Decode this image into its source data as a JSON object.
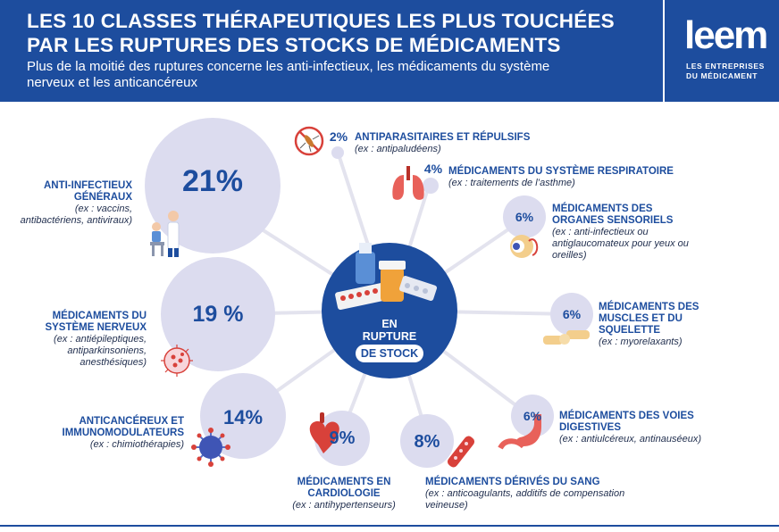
{
  "header": {
    "title_line1": "LES 10 CLASSES THÉRAPEUTIQUES LES PLUS TOUCHÉES",
    "title_line2": "PAR LES RUPTURES DES STOCKS DE MÉDICAMENTS",
    "subtitle": "Plus de la moitié des ruptures concerne les anti-infectieux, les médicaments du système nerveux et les anticancéreux"
  },
  "logo": {
    "wordmark": "leem",
    "tagline_line1": "LES ENTREPRISES",
    "tagline_line2": "DU MÉDICAMENT"
  },
  "center": {
    "line1": "EN",
    "line2": "RUPTURE",
    "line3": "DE STOCK"
  },
  "classes": [
    {
      "pct": "21%",
      "name": "ANTI-INFECTIEUX GÉNÉRAUX",
      "ex": "(ex : vaccins, antibactériens, antiviraux)"
    },
    {
      "pct": "19 %",
      "name": "MÉDICAMENTS DU SYSTÈME NERVEUX",
      "ex": "(ex : antiépileptiques, antiparkinsoniens, anesthésiques)"
    },
    {
      "pct": "14%",
      "name": "ANTICANCÉREUX ET IMMUNOMODULATEURS",
      "ex": "(ex : chimiothérapies)"
    },
    {
      "pct": "9%",
      "name": "MÉDICAMENTS EN CARDIOLOGIE",
      "ex": "(ex : antihypertenseurs)"
    },
    {
      "pct": "8%",
      "name": "MÉDICAMENTS DÉRIVÉS DU SANG",
      "ex": "(ex : anticoagulants, additifs de compensation veineuse)"
    },
    {
      "pct": "6%",
      "name": "MÉDICAMENTS DES VOIES DIGESTIVES",
      "ex": "(ex : antiulcéreux, antinauséeux)"
    },
    {
      "pct": "6%",
      "name": "MÉDICAMENTS DES MUSCLES ET DU SQUELETTE",
      "ex": "(ex : myorelaxants)"
    },
    {
      "pct": "6%",
      "name": "MÉDICAMENTS DES ORGANES SENSORIELS",
      "ex": "(ex : anti-infectieux ou antiglaucomateux pour yeux ou oreilles)"
    },
    {
      "pct": "4%",
      "name": "MÉDICAMENTS DU SYSTÈME RESPIRATOIRE",
      "ex": "(ex : traitements de l’asthme)"
    },
    {
      "pct": "2%",
      "name": "ANTIPARASITAIRES ET RÉPULSIFS",
      "ex": "(ex : antipaludéens)"
    }
  ],
  "colors": {
    "brand_blue": "#1d4d9e",
    "bubble_lavender": "#dcdcef",
    "spoke_gray": "#e3e3ee",
    "icon_red": "#d8413a"
  },
  "icons": [
    "doctor-child-icon",
    "brain-cell-icon",
    "virus-icon",
    "heart-icon",
    "blood-vessel-icon",
    "stomach-icon",
    "knee-joint-icon",
    "eye-icon",
    "lungs-icon",
    "mosquito-icon",
    "medicine-bottles-icon"
  ]
}
